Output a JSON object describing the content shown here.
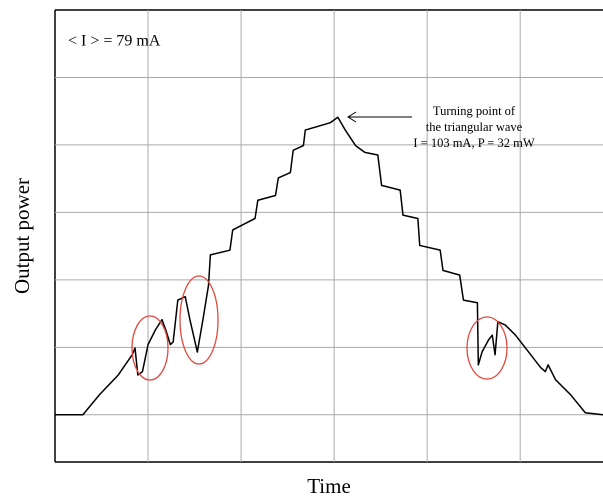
{
  "chart_data": {
    "type": "line",
    "annotations": [
      "< I > = 79 mA",
      "Turning point of",
      "the triangular wave",
      "I = 103 mA, P = 32 mW"
    ],
    "xlabel": "Time",
    "ylabel": "Output power",
    "xlim": [
      0,
      5.89
    ],
    "ylim": [
      -0.7,
      6
    ],
    "xticks": [
      1,
      2,
      3,
      4,
      5
    ],
    "yticks": [
      0,
      1,
      2,
      3,
      4,
      5
    ],
    "grid": true,
    "x": [
      0,
      0.3,
      0.48,
      0.68,
      0.83,
      0.86,
      0.89,
      0.94,
      1.0,
      1.08,
      1.15,
      1.19,
      1.24,
      1.27,
      1.32,
      1.4,
      1.45,
      1.53,
      1.59,
      1.65,
      1.67,
      1.88,
      1.91,
      2.15,
      2.18,
      2.37,
      2.4,
      2.53,
      2.56,
      2.67,
      2.69,
      2.96,
      3.04,
      3.12,
      3.23,
      3.33,
      3.47,
      3.51,
      3.71,
      3.74,
      3.9,
      3.92,
      4.14,
      4.17,
      4.35,
      4.39,
      4.54,
      4.55,
      4.59,
      4.66,
      4.7,
      4.73,
      4.76,
      4.84,
      4.95,
      5.22,
      5.27,
      5.3,
      5.38,
      5.54,
      5.7,
      5.89
    ],
    "series": [
      {
        "color": "#000000",
        "values": [
          0,
          0,
          0.3,
          0.59,
          0.89,
          0.99,
          0.59,
          0.64,
          1.04,
          1.26,
          1.41,
          1.26,
          1.04,
          1.08,
          1.7,
          1.75,
          1.41,
          0.93,
          1.41,
          1.92,
          2.37,
          2.44,
          2.74,
          2.91,
          3.18,
          3.25,
          3.51,
          3.59,
          3.92,
          3.99,
          4.22,
          4.33,
          4.41,
          4.22,
          3.99,
          3.89,
          3.85,
          3.4,
          3.33,
          2.96,
          2.91,
          2.51,
          2.44,
          2.14,
          2.07,
          1.7,
          1.66,
          0.74,
          0.93,
          1.11,
          1.18,
          0.89,
          1.38,
          1.33,
          1.18,
          0.7,
          0.64,
          0.74,
          0.52,
          0.3,
          0.03,
          0
        ]
      }
    ]
  }
}
